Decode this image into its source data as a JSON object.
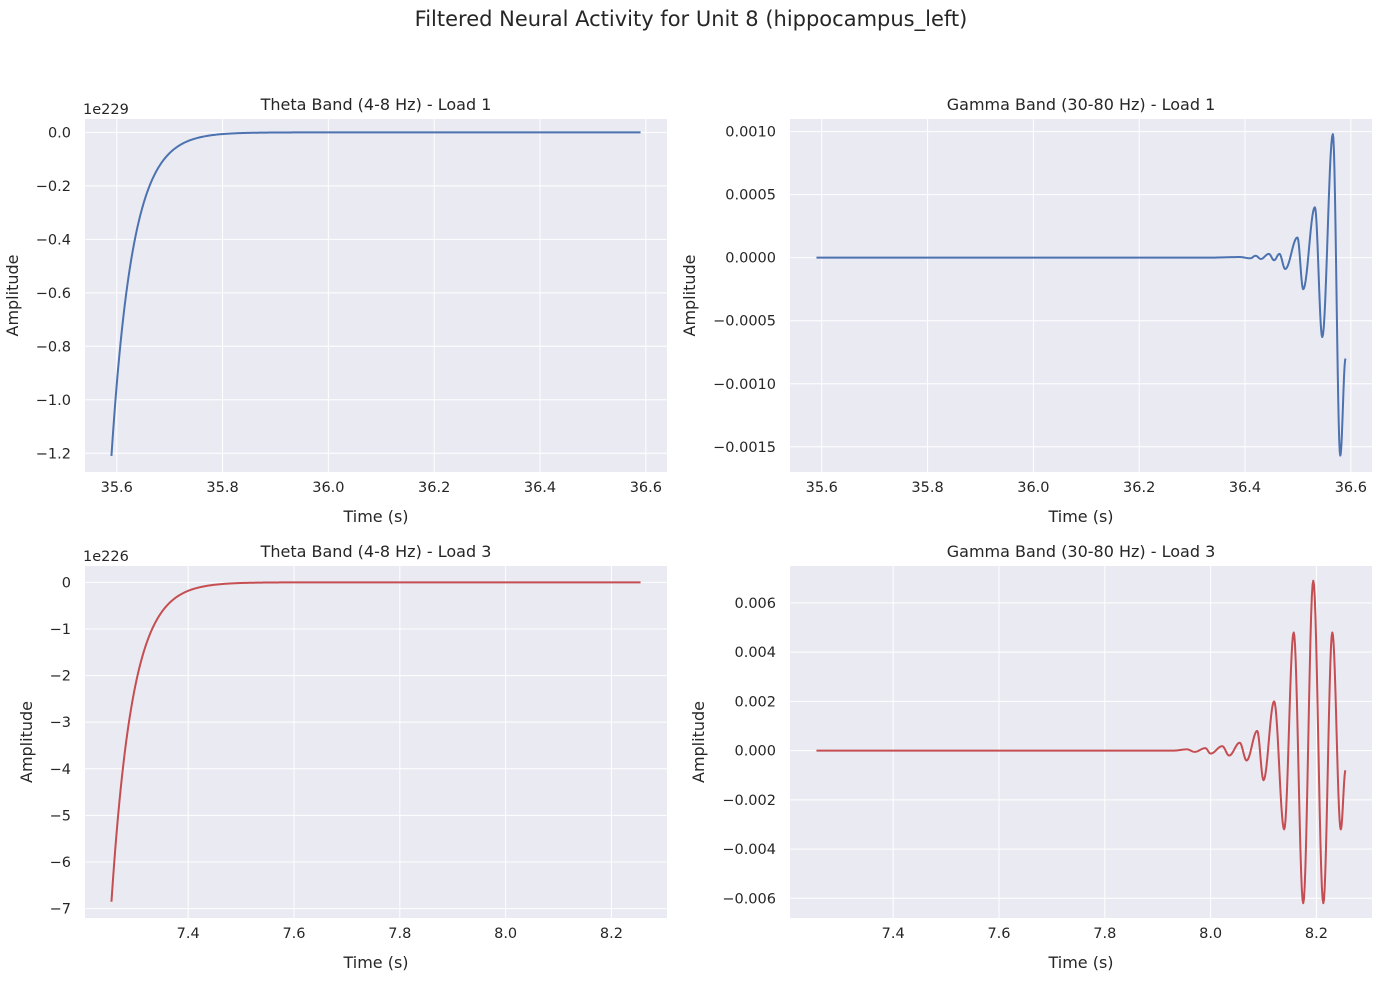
{
  "figure": {
    "title": "Filtered Neural Activity for Unit 8 (hippocampus_left)",
    "background": "#ffffff",
    "axes_facecolor": "#eaeaf2",
    "grid_color": "#ffffff"
  },
  "chart_data": [
    {
      "type": "line",
      "title": "Theta Band (4-8 Hz) - Load 1",
      "xlabel": "Time (s)",
      "ylabel": "Amplitude",
      "offset_text": "1e229",
      "color": "#4c72b0",
      "grid": true,
      "xlim": [
        35.54,
        36.64
      ],
      "ylim": [
        -1.27,
        0.05
      ],
      "xticks": [
        35.6,
        35.8,
        36.0,
        36.2,
        36.4,
        36.6
      ],
      "xtick_labels": [
        "35.6",
        "35.8",
        "36.0",
        "36.2",
        "36.4",
        "36.6"
      ],
      "yticks": [
        0.0,
        -0.2,
        -0.4,
        -0.6,
        -0.8,
        -1.0,
        -1.2
      ],
      "ytick_labels": [
        "0.0",
        "−0.2",
        "−0.4",
        "−0.6",
        "−0.8",
        "−1.0",
        "−1.2"
      ],
      "series": [
        {
          "kind": "exp_decay",
          "x_start": 35.59,
          "x_end": 36.59,
          "y_start": -1.21,
          "y_end": 0.0,
          "decay_rate": 25
        }
      ]
    },
    {
      "type": "line",
      "title": "Gamma Band (30-80 Hz) - Load 1",
      "xlabel": "Time (s)",
      "ylabel": "Amplitude",
      "offset_text": "",
      "color": "#4c72b0",
      "grid": true,
      "xlim": [
        35.54,
        36.64
      ],
      "ylim": [
        -0.0017,
        0.0011
      ],
      "xticks": [
        35.6,
        35.8,
        36.0,
        36.2,
        36.4,
        36.6
      ],
      "xtick_labels": [
        "35.6",
        "35.8",
        "36.0",
        "36.2",
        "36.4",
        "36.6"
      ],
      "yticks": [
        0.001,
        0.0005,
        0.0,
        -0.0005,
        -0.001,
        -0.0015
      ],
      "ytick_labels": [
        "0.0010",
        "0.0005",
        "0.0000",
        "−0.0005",
        "−0.0010",
        "−0.0015"
      ],
      "series": [
        {
          "kind": "growing_oscillation",
          "x_start": 35.59,
          "x_end": 36.59,
          "flat_until": 36.32,
          "peaks": [
            [
              36.33,
              0.0
            ],
            [
              36.39,
              5e-06
            ],
            [
              36.41,
              -5e-06
            ],
            [
              36.42,
              1.5e-05
            ],
            [
              36.43,
              -1e-05
            ],
            [
              36.445,
              3e-05
            ],
            [
              36.455,
              -2e-05
            ],
            [
              36.465,
              3e-05
            ],
            [
              36.476,
              -9e-05
            ],
            [
              36.499,
              0.00016
            ],
            [
              36.51,
              -0.00025
            ],
            [
              36.532,
              0.0004
            ],
            [
              36.546,
              -0.00063
            ],
            [
              36.566,
              0.00098
            ],
            [
              36.58,
              -0.00157
            ],
            [
              36.59,
              -0.0008
            ]
          ]
        }
      ]
    },
    {
      "type": "line",
      "title": "Theta Band (4-8 Hz) - Load 3",
      "xlabel": "Time (s)",
      "ylabel": "Amplitude",
      "offset_text": "1e226",
      "color": "#c44e52",
      "grid": true,
      "xlim": [
        7.205,
        8.305
      ],
      "ylim": [
        -7.2,
        0.35
      ],
      "xticks": [
        7.4,
        7.6,
        7.8,
        8.0,
        8.2
      ],
      "xtick_labels": [
        "7.4",
        "7.6",
        "7.8",
        "8.0",
        "8.2"
      ],
      "yticks": [
        0,
        -1,
        -2,
        -3,
        -4,
        -5,
        -6,
        -7
      ],
      "ytick_labels": [
        "0",
        "−1",
        "−2",
        "−3",
        "−4",
        "−5",
        "−6",
        "−7"
      ],
      "series": [
        {
          "kind": "exp_decay",
          "x_start": 7.255,
          "x_end": 8.255,
          "y_start": -6.85,
          "y_end": 0.0,
          "decay_rate": 25
        }
      ]
    },
    {
      "type": "line",
      "title": "Gamma Band (30-80 Hz) - Load 3",
      "xlabel": "Time (s)",
      "ylabel": "Amplitude",
      "offset_text": "",
      "color": "#c44e52",
      "grid": true,
      "xlim": [
        7.205,
        8.305
      ],
      "ylim": [
        -0.0068,
        0.0075
      ],
      "xticks": [
        7.4,
        7.6,
        7.8,
        8.0,
        8.2
      ],
      "xtick_labels": [
        "7.4",
        "7.6",
        "7.8",
        "8.0",
        "8.2"
      ],
      "yticks": [
        0.006,
        0.004,
        0.002,
        0.0,
        -0.002,
        -0.004,
        -0.006
      ],
      "ytick_labels": [
        "0.006",
        "0.004",
        "0.002",
        "0.000",
        "−0.002",
        "−0.004",
        "−0.006"
      ],
      "series": [
        {
          "kind": "growing_oscillation",
          "x_start": 7.255,
          "x_end": 8.255,
          "flat_until": 7.92,
          "peaks": [
            [
              7.93,
              0.0
            ],
            [
              7.955,
              5e-05
            ],
            [
              7.97,
              -5e-05
            ],
            [
              7.99,
              0.0001
            ],
            [
              8.0,
              -0.00012
            ],
            [
              8.022,
              0.00018
            ],
            [
              8.035,
              -0.0002
            ],
            [
              8.055,
              0.00032
            ],
            [
              8.068,
              -0.0004
            ],
            [
              8.088,
              0.0008
            ],
            [
              8.1,
              -0.0012
            ],
            [
              8.12,
              0.002
            ],
            [
              8.139,
              -0.0032
            ],
            [
              8.157,
              0.0048
            ],
            [
              8.175,
              -0.0062
            ],
            [
              8.194,
              0.0069
            ],
            [
              8.213,
              -0.0062
            ],
            [
              8.23,
              0.0048
            ],
            [
              8.246,
              -0.0032
            ],
            [
              8.255,
              -0.0008
            ]
          ]
        }
      ]
    }
  ]
}
